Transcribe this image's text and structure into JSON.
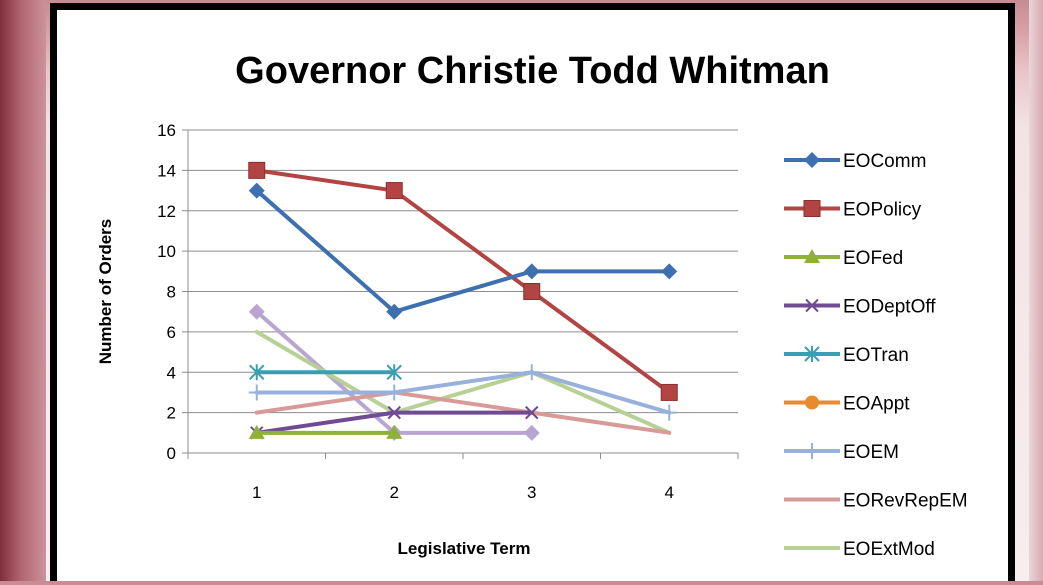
{
  "chart_data": {
    "type": "line",
    "title": "Governor Christie Todd Whitman",
    "xlabel": "Legislative Term",
    "ylabel": "Number of Orders",
    "categories": [
      "1",
      "2",
      "3",
      "4"
    ],
    "ylim": [
      0,
      16
    ],
    "yticks": [
      "0",
      "2",
      "4",
      "6",
      "8",
      "10",
      "12",
      "14",
      "16"
    ],
    "grid": true,
    "legend_position": "right",
    "series": [
      {
        "name": "EOComm",
        "color": "#3e70b0",
        "marker": "diamond",
        "values": [
          13,
          7,
          9,
          9
        ]
      },
      {
        "name": "EOPolicy",
        "color": "#b24444",
        "marker": "square",
        "values": [
          14,
          13,
          8,
          3
        ]
      },
      {
        "name": "EOFed",
        "color": "#8fb13c",
        "marker": "triangle",
        "values": [
          1,
          1,
          null,
          null
        ]
      },
      {
        "name": "EODeptOff",
        "color": "#704a93",
        "marker": "x",
        "values": [
          1,
          2,
          2,
          null
        ]
      },
      {
        "name": "EOTran",
        "color": "#3a9fb3",
        "marker": "star",
        "values": [
          4,
          4,
          null,
          null
        ]
      },
      {
        "name": "EOAppt",
        "color": "#e98a2f",
        "marker": "circle",
        "values": [
          null,
          null,
          null,
          null
        ]
      },
      {
        "name": "EOEM",
        "color": "#98b1dc",
        "marker": "plus",
        "values": [
          3,
          3,
          4,
          2
        ]
      },
      {
        "name": "EORevRepEM",
        "color": "#d79a97",
        "marker": "none",
        "values": [
          2,
          3,
          2,
          1
        ]
      },
      {
        "name": "EOExtMod",
        "color": "#b7d094",
        "marker": "none",
        "values": [
          6,
          2,
          4,
          1
        ]
      },
      {
        "name": "",
        "color": "#b9a5d2",
        "marker": "diamond",
        "values": [
          7,
          1,
          1,
          null
        ]
      }
    ]
  }
}
